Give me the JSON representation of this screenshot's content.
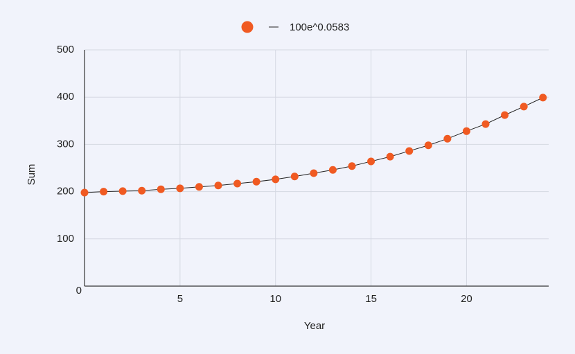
{
  "chart_data": {
    "type": "scatter",
    "x_label": "Year",
    "y_label": "Sum",
    "x": [
      0,
      1,
      2,
      3,
      4,
      5,
      6,
      7,
      8,
      9,
      10,
      11,
      12,
      13,
      14,
      15,
      16,
      17,
      18,
      19,
      20,
      21,
      22,
      23,
      24
    ],
    "series": [
      {
        "name": "100e^0.0583",
        "color": "#f05a22",
        "line_color": "#222222",
        "values": [
          198,
          200,
          201,
          202,
          205,
          207,
          210,
          213,
          217,
          221,
          226,
          232,
          239,
          246,
          254,
          264,
          274,
          286,
          298,
          312,
          328,
          343,
          362,
          380,
          399
        ]
      }
    ],
    "xlim": [
      0,
      24.3
    ],
    "xticks": [
      5,
      10,
      15,
      20
    ],
    "ylim": [
      0,
      500
    ],
    "yticks": [
      0,
      100,
      200,
      300,
      400,
      500
    ],
    "grid": true,
    "legend": "top"
  }
}
